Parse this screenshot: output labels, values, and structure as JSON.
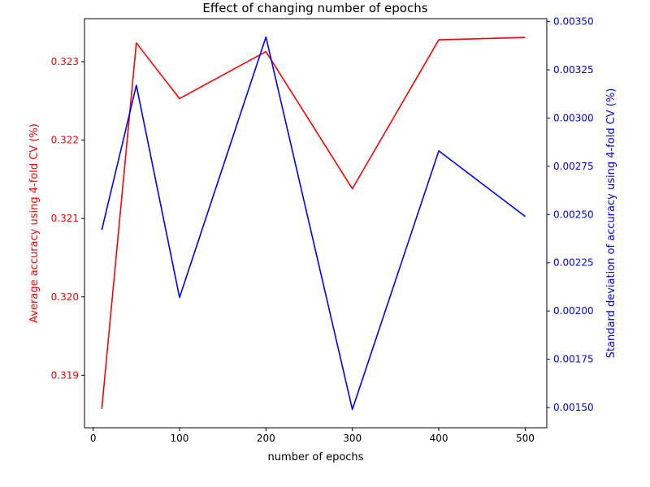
{
  "chart_data": {
    "type": "line",
    "title": "Effect of changing number of epochs",
    "xlabel": "number of epochs",
    "xlim": [
      -10,
      525
    ],
    "xticks": [
      0,
      100,
      200,
      300,
      400,
      500
    ],
    "x": [
      10,
      50,
      100,
      200,
      300,
      400,
      500
    ],
    "y_left": {
      "label": "Average accuracy using 4-fold CV (%)",
      "color": "#ff0000",
      "ylim": [
        0.31833,
        0.32355
      ],
      "ticks": [
        0.319,
        0.32,
        0.321,
        0.322,
        0.323
      ],
      "tick_labels": [
        "0.319",
        "0.320",
        "0.321",
        "0.322",
        "0.323"
      ]
    },
    "y_right": {
      "label": "Standard deviation of accuracy using 4-fold CV (%)",
      "color": "#0000ff",
      "ylim": [
        0.001395,
        0.003515
      ],
      "ticks": [
        0.0015,
        0.00175,
        0.002,
        0.00225,
        0.0025,
        0.00275,
        0.003,
        0.00325,
        0.0035
      ],
      "tick_labels": [
        "0.00150",
        "0.00175",
        "0.00200",
        "0.00225",
        "0.00250",
        "0.00275",
        "0.00300",
        "0.00325",
        "0.00350"
      ]
    },
    "series": [
      {
        "axis": "left",
        "color": "#ff0000",
        "values": [
          0.31857,
          0.32324,
          0.32253,
          0.32313,
          0.32138,
          0.32328,
          0.32331
        ]
      },
      {
        "axis": "right",
        "color": "#0000ff",
        "values": [
          0.00242,
          0.00317,
          0.00207,
          0.00342,
          0.00149,
          0.00283,
          0.00249
        ]
      }
    ],
    "grid": false
  }
}
